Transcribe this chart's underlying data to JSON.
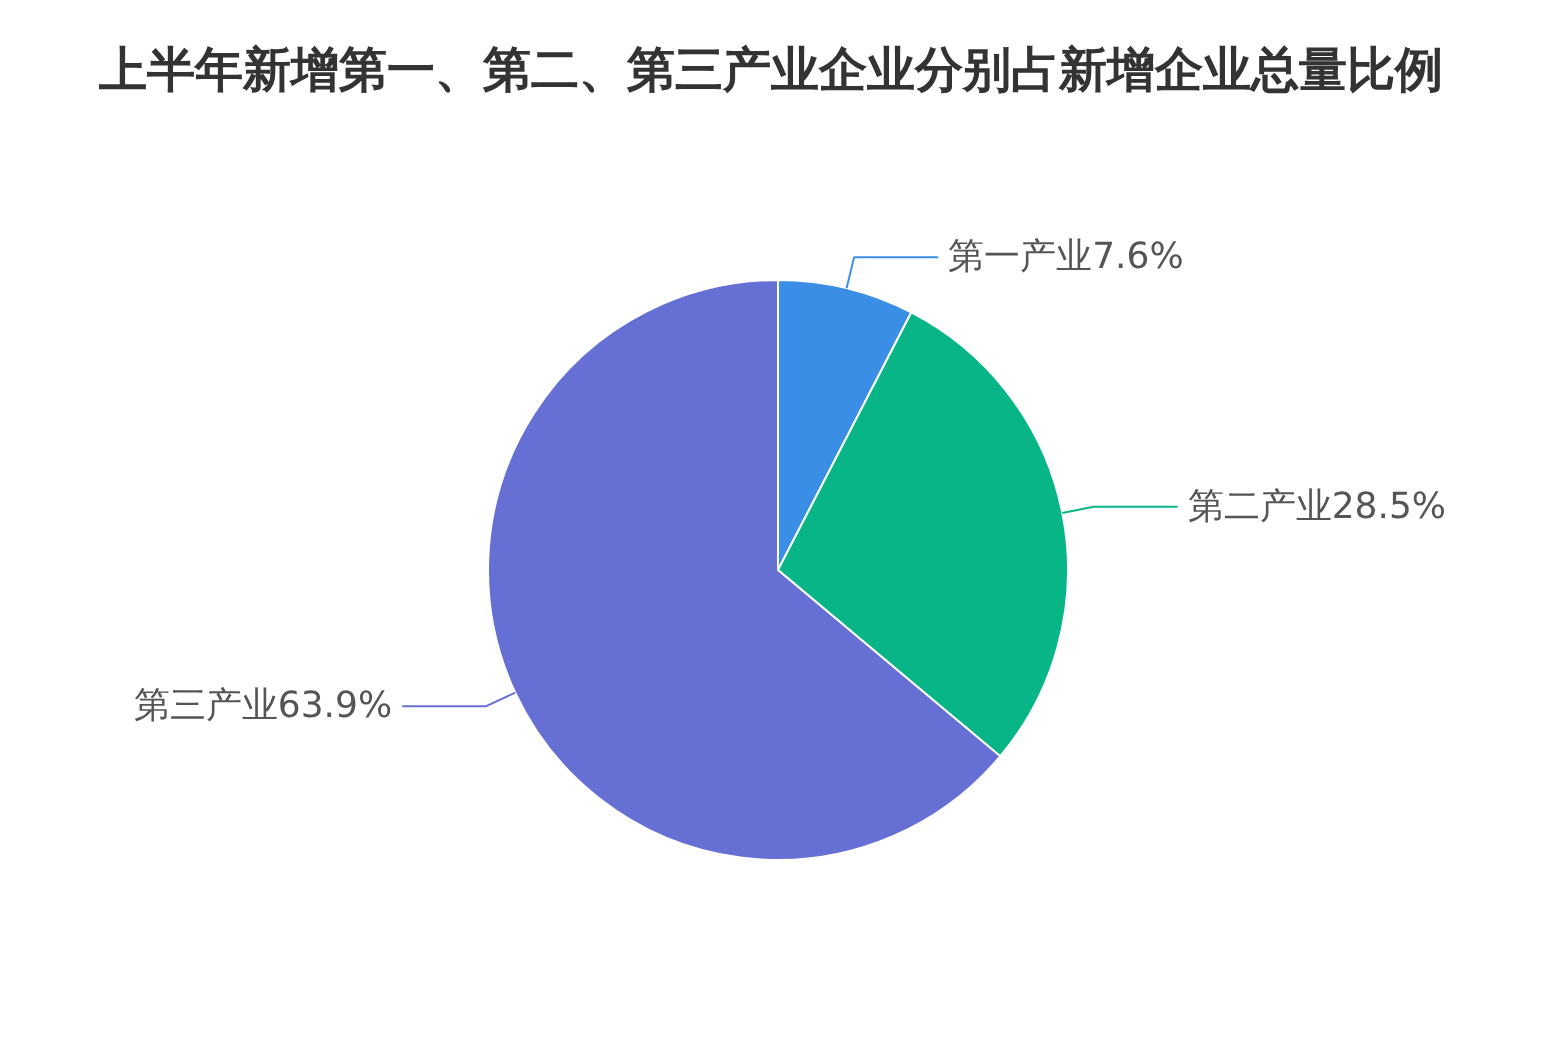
{
  "chart_data": {
    "type": "pie",
    "title": "上半年新增第一、第二、第三产业企业分别占新增企业总量比例",
    "categories": [
      "第一产业",
      "第二产业",
      "第三产业"
    ],
    "values": [
      7.6,
      28.5,
      63.9
    ],
    "colors": [
      "#3a8ee6",
      "#07b587",
      "#6670d4"
    ],
    "value_labels": [
      "7.6%",
      "28.5%",
      "63.9%"
    ]
  }
}
